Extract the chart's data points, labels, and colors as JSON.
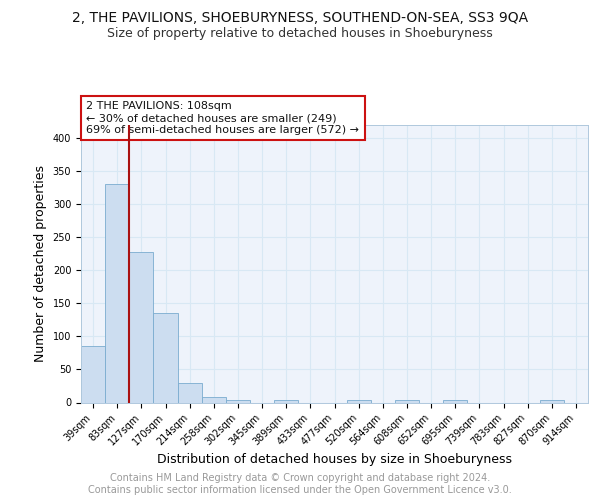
{
  "title": "2, THE PAVILIONS, SHOEBURYNESS, SOUTHEND-ON-SEA, SS3 9QA",
  "subtitle": "Size of property relative to detached houses in Shoeburyness",
  "xlabel": "Distribution of detached houses by size in Shoeburyness",
  "ylabel": "Number of detached properties",
  "bin_labels": [
    "39sqm",
    "83sqm",
    "127sqm",
    "170sqm",
    "214sqm",
    "258sqm",
    "302sqm",
    "345sqm",
    "389sqm",
    "433sqm",
    "477sqm",
    "520sqm",
    "564sqm",
    "608sqm",
    "652sqm",
    "695sqm",
    "739sqm",
    "783sqm",
    "827sqm",
    "870sqm",
    "914sqm"
  ],
  "bar_values": [
    85,
    330,
    228,
    135,
    29,
    9,
    4,
    0,
    4,
    0,
    0,
    4,
    0,
    4,
    0,
    4,
    0,
    0,
    0,
    4,
    0
  ],
  "bar_color": "#ccddf0",
  "bar_edge_color": "#7aaccf",
  "grid_color": "#d8e8f4",
  "background_color": "#eef3fb",
  "ref_line_color": "#aa1111",
  "annotation_line1": "2 THE PAVILIONS: 108sqm",
  "annotation_line2": "← 30% of detached houses are smaller (249)",
  "annotation_line3": "69% of semi-detached houses are larger (572) →",
  "annotation_box_facecolor": "#ffffff",
  "annotation_box_edgecolor": "#cc1111",
  "ylim": [
    0,
    420
  ],
  "yticks": [
    0,
    50,
    100,
    150,
    200,
    250,
    300,
    350,
    400
  ],
  "footer_text": "Contains HM Land Registry data © Crown copyright and database right 2024.\nContains public sector information licensed under the Open Government Licence v3.0.",
  "title_fontsize": 10,
  "subtitle_fontsize": 9,
  "axis_label_fontsize": 9,
  "tick_fontsize": 7,
  "annotation_fontsize": 8,
  "footer_fontsize": 7
}
